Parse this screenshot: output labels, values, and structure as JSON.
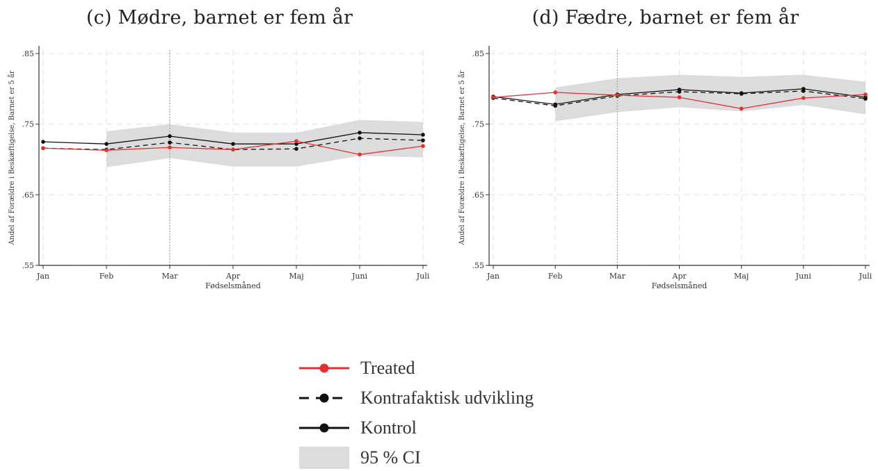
{
  "chart_data": [
    {
      "type": "line",
      "title": "(c) Mødre, barnet er fem år",
      "xlabel": "Fødselsmåned",
      "ylabel": "Andel af Forældre i Beskæftigelse, Barnet er 5 år",
      "categories": [
        "Jan",
        "Feb",
        "Mar",
        "Apr",
        "Maj",
        "Juni",
        "Juli"
      ],
      "yticks": [
        ".55",
        ".65",
        ".75",
        ".85"
      ],
      "ylim": [
        0.55,
        0.855
      ],
      "vline_at": "Mar",
      "grid": true,
      "series": [
        {
          "name": "Treated",
          "values": [
            0.716,
            0.713,
            0.717,
            0.714,
            0.726,
            0.707,
            0.719
          ]
        },
        {
          "name": "Kontrafaktisk udvikling",
          "values": [
            0.716,
            0.714,
            0.724,
            0.714,
            0.715,
            0.73,
            0.727
          ]
        },
        {
          "name": "Kontrol",
          "values": [
            0.725,
            0.722,
            0.733,
            0.722,
            0.722,
            0.738,
            0.735
          ]
        }
      ],
      "ci": {
        "name": "95 % CI",
        "x_from": "Feb",
        "lower": [
          null,
          0.689,
          0.702,
          0.69,
          0.69,
          0.705,
          0.703
        ],
        "upper": [
          null,
          0.74,
          0.75,
          0.738,
          0.738,
          0.756,
          0.753
        ]
      }
    },
    {
      "type": "line",
      "title": "(d) Fædre, barnet er fem år",
      "xlabel": "Fødselsmåned",
      "ylabel": "Andel af Forældre i Beskæftigelse, Barnet er 5 år",
      "categories": [
        "Jan",
        "Feb",
        "Mar",
        "Apr",
        "Maj",
        "Juni",
        "Juli"
      ],
      "yticks": [
        ".55",
        ".65",
        ".75",
        ".85"
      ],
      "ylim": [
        0.55,
        0.855
      ],
      "vline_at": "Mar",
      "grid": true,
      "series": [
        {
          "name": "Treated",
          "values": [
            0.788,
            0.795,
            0.791,
            0.788,
            0.772,
            0.787,
            0.792
          ]
        },
        {
          "name": "Kontrafaktisk udvikling",
          "values": [
            0.787,
            0.776,
            0.79,
            0.796,
            0.793,
            0.797,
            0.786
          ]
        },
        {
          "name": "Kontrol",
          "values": [
            0.789,
            0.778,
            0.792,
            0.799,
            0.794,
            0.8,
            0.788
          ]
        }
      ],
      "ci": {
        "name": "95 % CI",
        "x_from": "Feb",
        "lower": [
          null,
          0.754,
          0.767,
          0.774,
          0.768,
          0.777,
          0.764
        ],
        "upper": [
          null,
          0.802,
          0.815,
          0.82,
          0.817,
          0.82,
          0.81
        ]
      }
    }
  ],
  "legend": {
    "items": [
      {
        "label": "Treated",
        "style": "solid-red",
        "color": "#e03030"
      },
      {
        "label": "Kontrafaktisk udvikling",
        "style": "dashed-black",
        "color": "#111111"
      },
      {
        "label": "Kontrol",
        "style": "solid-black",
        "color": "#111111"
      },
      {
        "label": "95 % CI",
        "style": "band",
        "color": "#dcdcdc"
      }
    ]
  },
  "colors": {
    "treated": "#e03030",
    "kontrol": "#111111",
    "ci": "#dcdcdc",
    "grid": "#e6e6e6"
  }
}
